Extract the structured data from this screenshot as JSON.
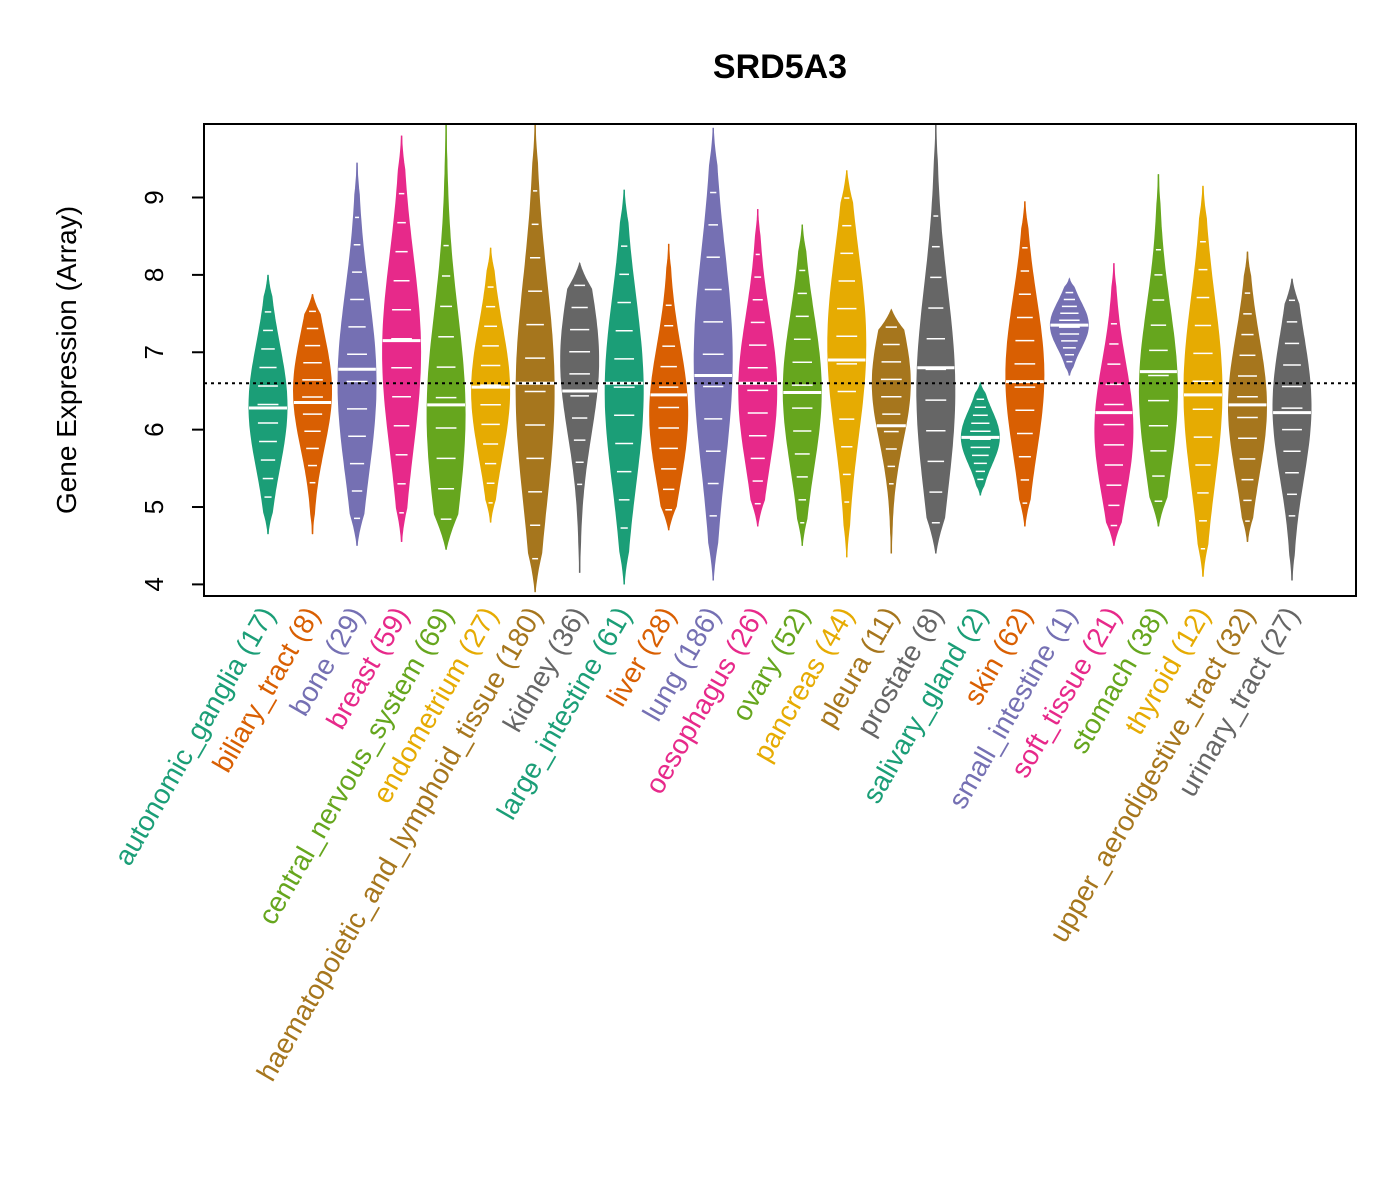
{
  "chart_data": {
    "type": "violin",
    "title": "SRD5A3",
    "xlabel": "",
    "ylabel": "Gene Expression (Array)",
    "ylim": [
      3.85,
      9.95
    ],
    "yticks": [
      4,
      5,
      6,
      7,
      8,
      9
    ],
    "reference_line": 6.6,
    "palette": [
      "#1b9e77",
      "#d95f02",
      "#7570b3",
      "#e7298a",
      "#66a61e",
      "#e6ab02",
      "#a6761d",
      "#666666"
    ],
    "categories": [
      {
        "label": "autonomic_ganglia (17)",
        "min": 4.65,
        "max": 8.0,
        "median": 6.28,
        "peak": 6.3
      },
      {
        "label": "biliary_tract (8)",
        "min": 4.65,
        "max": 7.75,
        "median": 6.35,
        "peak": 6.5
      },
      {
        "label": "bone (29)",
        "min": 4.5,
        "max": 9.45,
        "median": 6.78,
        "peak": 6.6
      },
      {
        "label": "breast (59)",
        "min": 4.55,
        "max": 9.8,
        "median": 7.15,
        "peak": 7.0
      },
      {
        "label": "central_nervous_system (69)",
        "min": 4.45,
        "max": 9.95,
        "median": 6.32,
        "peak": 6.2
      },
      {
        "label": "endometrium (27)",
        "min": 4.8,
        "max": 8.35,
        "median": 6.55,
        "peak": 6.5
      },
      {
        "label": "haematopoietic_and_lymphoid_tissue (180)",
        "min": 3.9,
        "max": 9.95,
        "median": 6.6,
        "peak": 6.5
      },
      {
        "label": "kidney (36)",
        "min": 4.15,
        "max": 8.15,
        "median": 6.5,
        "peak": 6.9
      },
      {
        "label": "large_intestine (61)",
        "min": 4.0,
        "max": 9.1,
        "median": 6.6,
        "peak": 6.5
      },
      {
        "label": "liver (28)",
        "min": 4.7,
        "max": 8.4,
        "median": 6.45,
        "peak": 6.2
      },
      {
        "label": "lung (186)",
        "min": 4.05,
        "max": 9.9,
        "median": 6.7,
        "peak": 6.9
      },
      {
        "label": "oesophagus (26)",
        "min": 4.75,
        "max": 8.85,
        "median": 6.6,
        "peak": 6.5
      },
      {
        "label": "ovary (52)",
        "min": 4.5,
        "max": 8.65,
        "median": 6.48,
        "peak": 6.5
      },
      {
        "label": "pancreas (44)",
        "min": 4.35,
        "max": 9.35,
        "median": 6.9,
        "peak": 7.1
      },
      {
        "label": "pleura (11)",
        "min": 4.4,
        "max": 7.55,
        "median": 6.05,
        "peak": 6.6
      },
      {
        "label": "prostate (8)",
        "min": 4.4,
        "max": 9.95,
        "median": 6.8,
        "peak": 6.5
      },
      {
        "label": "salivary_gland (2)",
        "min": 5.15,
        "max": 6.6,
        "median": 5.9,
        "peak": 5.9
      },
      {
        "label": "skin (62)",
        "min": 4.75,
        "max": 8.95,
        "median": 6.62,
        "peak": 6.7
      },
      {
        "label": "small_intestine (1)",
        "min": 6.7,
        "max": 7.95,
        "median": 7.35,
        "peak": 7.35
      },
      {
        "label": "soft_tissue (21)",
        "min": 4.5,
        "max": 8.15,
        "median": 6.22,
        "peak": 6.0
      },
      {
        "label": "stomach (38)",
        "min": 4.75,
        "max": 9.3,
        "median": 6.75,
        "peak": 6.5
      },
      {
        "label": "thyroid (12)",
        "min": 4.1,
        "max": 9.15,
        "median": 6.45,
        "peak": 6.5
      },
      {
        "label": "upper_aerodigestive_tract (32)",
        "min": 4.55,
        "max": 8.3,
        "median": 6.32,
        "peak": 6.3
      },
      {
        "label": "urinary_tract (27)",
        "min": 4.05,
        "max": 7.95,
        "median": 6.22,
        "peak": 6.3
      }
    ]
  }
}
